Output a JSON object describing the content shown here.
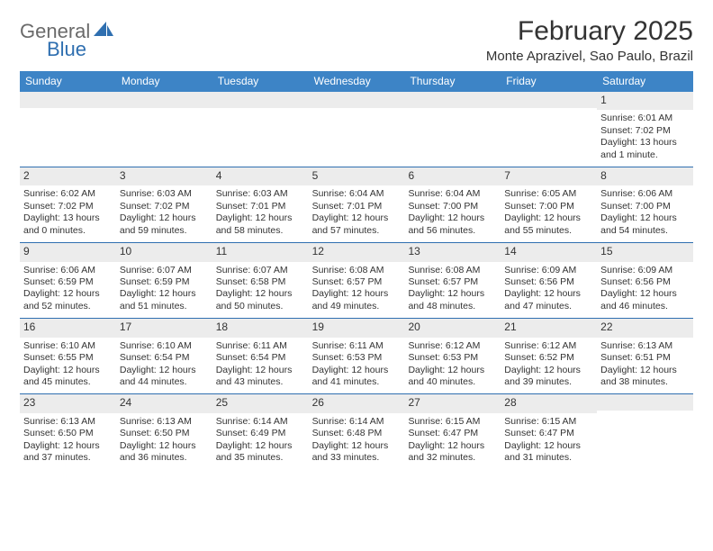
{
  "logo": {
    "word1": "General",
    "word2": "Blue"
  },
  "title": "February 2025",
  "location": "Monte Aprazivel, Sao Paulo, Brazil",
  "colors": {
    "header_bar": "#3d84c6",
    "week_divider": "#2f6fb0",
    "daynum_band": "#ececec",
    "logo_gray": "#6a6a6a",
    "logo_blue": "#2f6fb0"
  },
  "day_headers": [
    "Sunday",
    "Monday",
    "Tuesday",
    "Wednesday",
    "Thursday",
    "Friday",
    "Saturday"
  ],
  "weeks": [
    [
      {
        "num": "",
        "sunrise": "",
        "sunset": "",
        "day_l1": "",
        "day_l2": ""
      },
      {
        "num": "",
        "sunrise": "",
        "sunset": "",
        "day_l1": "",
        "day_l2": ""
      },
      {
        "num": "",
        "sunrise": "",
        "sunset": "",
        "day_l1": "",
        "day_l2": ""
      },
      {
        "num": "",
        "sunrise": "",
        "sunset": "",
        "day_l1": "",
        "day_l2": ""
      },
      {
        "num": "",
        "sunrise": "",
        "sunset": "",
        "day_l1": "",
        "day_l2": ""
      },
      {
        "num": "",
        "sunrise": "",
        "sunset": "",
        "day_l1": "",
        "day_l2": ""
      },
      {
        "num": "1",
        "sunrise": "Sunrise: 6:01 AM",
        "sunset": "Sunset: 7:02 PM",
        "day_l1": "Daylight: 13 hours",
        "day_l2": "and 1 minute."
      }
    ],
    [
      {
        "num": "2",
        "sunrise": "Sunrise: 6:02 AM",
        "sunset": "Sunset: 7:02 PM",
        "day_l1": "Daylight: 13 hours",
        "day_l2": "and 0 minutes."
      },
      {
        "num": "3",
        "sunrise": "Sunrise: 6:03 AM",
        "sunset": "Sunset: 7:02 PM",
        "day_l1": "Daylight: 12 hours",
        "day_l2": "and 59 minutes."
      },
      {
        "num": "4",
        "sunrise": "Sunrise: 6:03 AM",
        "sunset": "Sunset: 7:01 PM",
        "day_l1": "Daylight: 12 hours",
        "day_l2": "and 58 minutes."
      },
      {
        "num": "5",
        "sunrise": "Sunrise: 6:04 AM",
        "sunset": "Sunset: 7:01 PM",
        "day_l1": "Daylight: 12 hours",
        "day_l2": "and 57 minutes."
      },
      {
        "num": "6",
        "sunrise": "Sunrise: 6:04 AM",
        "sunset": "Sunset: 7:00 PM",
        "day_l1": "Daylight: 12 hours",
        "day_l2": "and 56 minutes."
      },
      {
        "num": "7",
        "sunrise": "Sunrise: 6:05 AM",
        "sunset": "Sunset: 7:00 PM",
        "day_l1": "Daylight: 12 hours",
        "day_l2": "and 55 minutes."
      },
      {
        "num": "8",
        "sunrise": "Sunrise: 6:06 AM",
        "sunset": "Sunset: 7:00 PM",
        "day_l1": "Daylight: 12 hours",
        "day_l2": "and 54 minutes."
      }
    ],
    [
      {
        "num": "9",
        "sunrise": "Sunrise: 6:06 AM",
        "sunset": "Sunset: 6:59 PM",
        "day_l1": "Daylight: 12 hours",
        "day_l2": "and 52 minutes."
      },
      {
        "num": "10",
        "sunrise": "Sunrise: 6:07 AM",
        "sunset": "Sunset: 6:59 PM",
        "day_l1": "Daylight: 12 hours",
        "day_l2": "and 51 minutes."
      },
      {
        "num": "11",
        "sunrise": "Sunrise: 6:07 AM",
        "sunset": "Sunset: 6:58 PM",
        "day_l1": "Daylight: 12 hours",
        "day_l2": "and 50 minutes."
      },
      {
        "num": "12",
        "sunrise": "Sunrise: 6:08 AM",
        "sunset": "Sunset: 6:57 PM",
        "day_l1": "Daylight: 12 hours",
        "day_l2": "and 49 minutes."
      },
      {
        "num": "13",
        "sunrise": "Sunrise: 6:08 AM",
        "sunset": "Sunset: 6:57 PM",
        "day_l1": "Daylight: 12 hours",
        "day_l2": "and 48 minutes."
      },
      {
        "num": "14",
        "sunrise": "Sunrise: 6:09 AM",
        "sunset": "Sunset: 6:56 PM",
        "day_l1": "Daylight: 12 hours",
        "day_l2": "and 47 minutes."
      },
      {
        "num": "15",
        "sunrise": "Sunrise: 6:09 AM",
        "sunset": "Sunset: 6:56 PM",
        "day_l1": "Daylight: 12 hours",
        "day_l2": "and 46 minutes."
      }
    ],
    [
      {
        "num": "16",
        "sunrise": "Sunrise: 6:10 AM",
        "sunset": "Sunset: 6:55 PM",
        "day_l1": "Daylight: 12 hours",
        "day_l2": "and 45 minutes."
      },
      {
        "num": "17",
        "sunrise": "Sunrise: 6:10 AM",
        "sunset": "Sunset: 6:54 PM",
        "day_l1": "Daylight: 12 hours",
        "day_l2": "and 44 minutes."
      },
      {
        "num": "18",
        "sunrise": "Sunrise: 6:11 AM",
        "sunset": "Sunset: 6:54 PM",
        "day_l1": "Daylight: 12 hours",
        "day_l2": "and 43 minutes."
      },
      {
        "num": "19",
        "sunrise": "Sunrise: 6:11 AM",
        "sunset": "Sunset: 6:53 PM",
        "day_l1": "Daylight: 12 hours",
        "day_l2": "and 41 minutes."
      },
      {
        "num": "20",
        "sunrise": "Sunrise: 6:12 AM",
        "sunset": "Sunset: 6:53 PM",
        "day_l1": "Daylight: 12 hours",
        "day_l2": "and 40 minutes."
      },
      {
        "num": "21",
        "sunrise": "Sunrise: 6:12 AM",
        "sunset": "Sunset: 6:52 PM",
        "day_l1": "Daylight: 12 hours",
        "day_l2": "and 39 minutes."
      },
      {
        "num": "22",
        "sunrise": "Sunrise: 6:13 AM",
        "sunset": "Sunset: 6:51 PM",
        "day_l1": "Daylight: 12 hours",
        "day_l2": "and 38 minutes."
      }
    ],
    [
      {
        "num": "23",
        "sunrise": "Sunrise: 6:13 AM",
        "sunset": "Sunset: 6:50 PM",
        "day_l1": "Daylight: 12 hours",
        "day_l2": "and 37 minutes."
      },
      {
        "num": "24",
        "sunrise": "Sunrise: 6:13 AM",
        "sunset": "Sunset: 6:50 PM",
        "day_l1": "Daylight: 12 hours",
        "day_l2": "and 36 minutes."
      },
      {
        "num": "25",
        "sunrise": "Sunrise: 6:14 AM",
        "sunset": "Sunset: 6:49 PM",
        "day_l1": "Daylight: 12 hours",
        "day_l2": "and 35 minutes."
      },
      {
        "num": "26",
        "sunrise": "Sunrise: 6:14 AM",
        "sunset": "Sunset: 6:48 PM",
        "day_l1": "Daylight: 12 hours",
        "day_l2": "and 33 minutes."
      },
      {
        "num": "27",
        "sunrise": "Sunrise: 6:15 AM",
        "sunset": "Sunset: 6:47 PM",
        "day_l1": "Daylight: 12 hours",
        "day_l2": "and 32 minutes."
      },
      {
        "num": "28",
        "sunrise": "Sunrise: 6:15 AM",
        "sunset": "Sunset: 6:47 PM",
        "day_l1": "Daylight: 12 hours",
        "day_l2": "and 31 minutes."
      },
      {
        "num": "",
        "sunrise": "",
        "sunset": "",
        "day_l1": "",
        "day_l2": ""
      }
    ]
  ]
}
